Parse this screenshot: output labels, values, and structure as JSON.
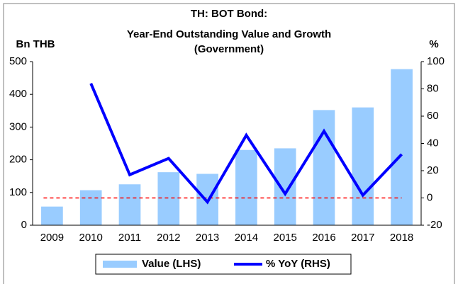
{
  "chart_data": {
    "type": "bar",
    "title": [
      "TH: BOT Bond:",
      "Year-End Outstanding Value and Growth",
      "(Government)"
    ],
    "y_label": "Bn THB",
    "y2_label": "%",
    "categories": [
      "2009",
      "2010",
      "2011",
      "2012",
      "2013",
      "2014",
      "2015",
      "2016",
      "2017",
      "2018"
    ],
    "series": [
      {
        "name": "Value (LHS)",
        "type": "bar",
        "color": "#99ccff",
        "values": [
          57,
          107,
          125,
          162,
          157,
          230,
          235,
          352,
          360,
          477
        ]
      },
      {
        "name": "% YoY (RHS)",
        "type": "line",
        "axis": "y2",
        "color": "#0000ff",
        "values": [
          null,
          84,
          17,
          29,
          -3,
          46,
          3,
          49,
          2,
          32
        ]
      }
    ],
    "ylim": [
      0,
      500
    ],
    "yticks": [
      0,
      100,
      200,
      300,
      400,
      500
    ],
    "y2lim": [
      -20,
      100
    ],
    "y2ticks": [
      -20,
      0,
      20,
      40,
      60,
      80,
      100
    ],
    "y2_reference": 0,
    "reference_color": "#ff0000",
    "legend": "bottom"
  }
}
